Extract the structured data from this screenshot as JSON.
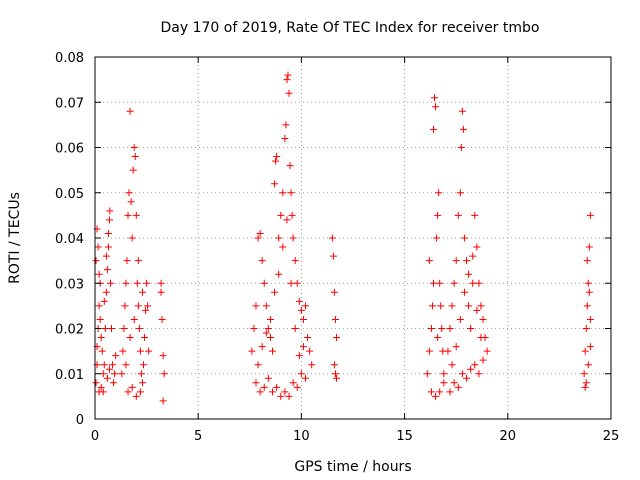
{
  "chart_data": {
    "type": "scatter",
    "title": "Day 170 of 2019, Rate Of TEC Index for receiver tmbo",
    "xlabel": "GPS time / hours",
    "ylabel": "ROTI / TECUs",
    "xlim": [
      0,
      25
    ],
    "ylim": [
      0,
      0.08
    ],
    "xticks": [
      "0",
      "5",
      "10",
      "15",
      "20",
      "25"
    ],
    "yticks": [
      "0",
      "0.01",
      "0.02",
      "0.03",
      "0.04",
      "0.05",
      "0.06",
      "0.07",
      "0.08"
    ],
    "grid": true,
    "marker": "plus",
    "color": "#ff0000",
    "series": [
      {
        "values": [
          [
            0.05,
            0.008
          ],
          [
            0.1,
            0.012
          ],
          [
            0.15,
            0.02
          ],
          [
            0.2,
            0.025
          ],
          [
            0.25,
            0.03
          ],
          [
            0.1,
            0.042
          ],
          [
            0.15,
            0.038
          ],
          [
            0.2,
            0.032
          ],
          [
            0.05,
            0.035
          ],
          [
            0.3,
            0.018
          ],
          [
            0.35,
            0.015
          ],
          [
            0.4,
            0.01
          ],
          [
            0.45,
            0.012
          ],
          [
            0.5,
            0.02
          ],
          [
            0.55,
            0.028
          ],
          [
            0.6,
            0.033
          ],
          [
            0.65,
            0.038
          ],
          [
            0.7,
            0.044
          ],
          [
            0.72,
            0.046
          ],
          [
            0.75,
            0.03
          ],
          [
            0.8,
            0.02
          ],
          [
            0.85,
            0.012
          ],
          [
            0.9,
            0.008
          ],
          [
            0.95,
            0.01
          ],
          [
            1.0,
            0.014
          ],
          [
            0.2,
            0.006
          ],
          [
            0.3,
            0.007
          ],
          [
            0.4,
            0.006
          ],
          [
            0.6,
            0.009
          ],
          [
            0.7,
            0.011
          ],
          [
            0.1,
            0.016
          ],
          [
            0.25,
            0.022
          ],
          [
            0.45,
            0.026
          ],
          [
            0.55,
            0.036
          ],
          [
            0.65,
            0.041
          ],
          [
            1.3,
            0.01
          ],
          [
            1.35,
            0.015
          ],
          [
            1.4,
            0.02
          ],
          [
            1.45,
            0.025
          ],
          [
            1.5,
            0.03
          ],
          [
            1.55,
            0.035
          ],
          [
            1.6,
            0.045
          ],
          [
            1.65,
            0.05
          ],
          [
            1.7,
            0.068
          ],
          [
            1.75,
            0.048
          ],
          [
            1.8,
            0.04
          ],
          [
            1.85,
            0.055
          ],
          [
            1.9,
            0.06
          ],
          [
            1.95,
            0.058
          ],
          [
            2.0,
            0.045
          ],
          [
            2.05,
            0.03
          ],
          [
            2.1,
            0.025
          ],
          [
            2.15,
            0.02
          ],
          [
            2.2,
            0.015
          ],
          [
            2.25,
            0.01
          ],
          [
            2.3,
            0.008
          ],
          [
            2.35,
            0.012
          ],
          [
            2.4,
            0.018
          ],
          [
            2.45,
            0.024
          ],
          [
            2.5,
            0.03
          ],
          [
            2.55,
            0.025
          ],
          [
            2.6,
            0.015
          ],
          [
            1.6,
            0.006
          ],
          [
            1.8,
            0.007
          ],
          [
            2.0,
            0.005
          ],
          [
            2.2,
            0.006
          ],
          [
            1.5,
            0.012
          ],
          [
            1.7,
            0.018
          ],
          [
            1.9,
            0.022
          ],
          [
            2.1,
            0.035
          ],
          [
            2.3,
            0.028
          ],
          [
            3.2,
            0.03
          ],
          [
            3.25,
            0.022
          ],
          [
            3.3,
            0.014
          ],
          [
            3.35,
            0.01
          ],
          [
            3.3,
            0.004
          ],
          [
            3.2,
            0.028
          ],
          [
            7.6,
            0.015
          ],
          [
            7.7,
            0.02
          ],
          [
            7.8,
            0.025
          ],
          [
            7.9,
            0.04
          ],
          [
            8.0,
            0.041
          ],
          [
            8.1,
            0.035
          ],
          [
            8.2,
            0.03
          ],
          [
            8.3,
            0.025
          ],
          [
            8.4,
            0.02
          ],
          [
            8.5,
            0.018
          ],
          [
            8.6,
            0.015
          ],
          [
            8.7,
            0.052
          ],
          [
            8.75,
            0.057
          ],
          [
            8.8,
            0.058
          ],
          [
            8.9,
            0.04
          ],
          [
            9.0,
            0.045
          ],
          [
            9.1,
            0.05
          ],
          [
            9.2,
            0.062
          ],
          [
            9.25,
            0.065
          ],
          [
            9.3,
            0.075
          ],
          [
            9.35,
            0.076
          ],
          [
            9.4,
            0.072
          ],
          [
            9.45,
            0.056
          ],
          [
            9.5,
            0.05
          ],
          [
            9.55,
            0.045
          ],
          [
            9.6,
            0.04
          ],
          [
            9.7,
            0.035
          ],
          [
            9.8,
            0.03
          ],
          [
            9.9,
            0.026
          ],
          [
            10.0,
            0.024
          ],
          [
            10.1,
            0.022
          ],
          [
            10.2,
            0.025
          ],
          [
            10.3,
            0.018
          ],
          [
            10.4,
            0.015
          ],
          [
            10.5,
            0.012
          ],
          [
            7.8,
            0.008
          ],
          [
            8.0,
            0.006
          ],
          [
            8.2,
            0.007
          ],
          [
            8.4,
            0.009
          ],
          [
            8.6,
            0.006
          ],
          [
            8.8,
            0.007
          ],
          [
            9.0,
            0.005
          ],
          [
            9.2,
            0.006
          ],
          [
            9.4,
            0.005
          ],
          [
            9.6,
            0.008
          ],
          [
            9.8,
            0.007
          ],
          [
            10.0,
            0.01
          ],
          [
            10.2,
            0.009
          ],
          [
            7.9,
            0.012
          ],
          [
            8.1,
            0.016
          ],
          [
            8.3,
            0.019
          ],
          [
            8.5,
            0.022
          ],
          [
            8.7,
            0.028
          ],
          [
            8.9,
            0.032
          ],
          [
            9.1,
            0.038
          ],
          [
            9.3,
            0.044
          ],
          [
            9.5,
            0.03
          ],
          [
            9.7,
            0.02
          ],
          [
            9.9,
            0.014
          ],
          [
            10.1,
            0.016
          ],
          [
            11.5,
            0.04
          ],
          [
            11.55,
            0.036
          ],
          [
            11.6,
            0.028
          ],
          [
            11.65,
            0.022
          ],
          [
            11.7,
            0.018
          ],
          [
            11.6,
            0.012
          ],
          [
            11.65,
            0.01
          ],
          [
            11.7,
            0.009
          ],
          [
            16.1,
            0.01
          ],
          [
            16.2,
            0.015
          ],
          [
            16.3,
            0.02
          ],
          [
            16.35,
            0.025
          ],
          [
            16.4,
            0.064
          ],
          [
            16.45,
            0.071
          ],
          [
            16.5,
            0.069
          ],
          [
            16.55,
            0.04
          ],
          [
            16.6,
            0.045
          ],
          [
            16.65,
            0.05
          ],
          [
            16.7,
            0.03
          ],
          [
            16.75,
            0.025
          ],
          [
            16.8,
            0.02
          ],
          [
            16.85,
            0.015
          ],
          [
            16.9,
            0.008
          ],
          [
            16.3,
            0.006
          ],
          [
            16.5,
            0.005
          ],
          [
            16.7,
            0.006
          ],
          [
            16.9,
            0.01
          ],
          [
            16.2,
            0.035
          ],
          [
            16.4,
            0.03
          ],
          [
            16.6,
            0.018
          ],
          [
            17.1,
            0.015
          ],
          [
            17.2,
            0.02
          ],
          [
            17.3,
            0.025
          ],
          [
            17.4,
            0.03
          ],
          [
            17.5,
            0.035
          ],
          [
            17.6,
            0.045
          ],
          [
            17.7,
            0.05
          ],
          [
            17.75,
            0.06
          ],
          [
            17.8,
            0.068
          ],
          [
            17.85,
            0.064
          ],
          [
            17.9,
            0.04
          ],
          [
            18.0,
            0.035
          ],
          [
            18.1,
            0.025
          ],
          [
            18.2,
            0.02
          ],
          [
            18.3,
            0.03
          ],
          [
            18.4,
            0.045
          ],
          [
            18.5,
            0.038
          ],
          [
            18.6,
            0.03
          ],
          [
            18.7,
            0.025
          ],
          [
            18.8,
            0.022
          ],
          [
            18.9,
            0.018
          ],
          [
            19.0,
            0.015
          ],
          [
            17.2,
            0.006
          ],
          [
            17.4,
            0.008
          ],
          [
            17.6,
            0.007
          ],
          [
            17.8,
            0.01
          ],
          [
            18.0,
            0.009
          ],
          [
            18.2,
            0.011
          ],
          [
            18.4,
            0.012
          ],
          [
            18.6,
            0.01
          ],
          [
            18.8,
            0.013
          ],
          [
            17.3,
            0.012
          ],
          [
            17.5,
            0.016
          ],
          [
            17.7,
            0.022
          ],
          [
            17.9,
            0.028
          ],
          [
            18.1,
            0.032
          ],
          [
            18.3,
            0.036
          ],
          [
            18.5,
            0.024
          ],
          [
            18.7,
            0.018
          ],
          [
            23.7,
            0.01
          ],
          [
            23.75,
            0.015
          ],
          [
            23.8,
            0.02
          ],
          [
            23.85,
            0.025
          ],
          [
            23.9,
            0.03
          ],
          [
            23.95,
            0.038
          ],
          [
            24.0,
            0.045
          ],
          [
            23.85,
            0.035
          ],
          [
            23.95,
            0.028
          ],
          [
            24.0,
            0.022
          ],
          [
            23.8,
            0.008
          ],
          [
            23.9,
            0.012
          ],
          [
            24.0,
            0.016
          ],
          [
            23.75,
            0.007
          ]
        ]
      }
    ]
  }
}
